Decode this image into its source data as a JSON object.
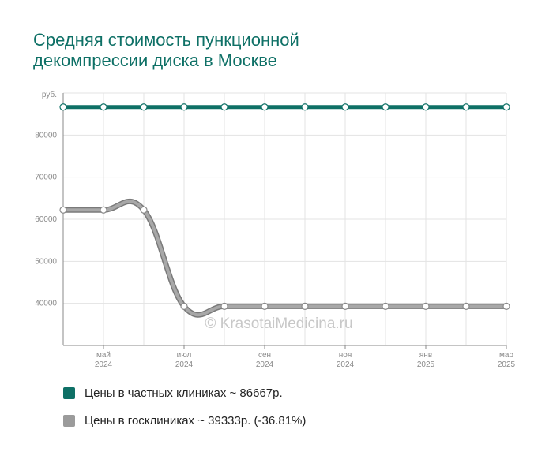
{
  "title": {
    "line1": "Средняя стоимость пункционной",
    "line2": "декомпрессии диска в Москве"
  },
  "watermark": "© KrasotaiMedicina.ru",
  "colors": {
    "private": "#0e7066",
    "public": "#9b9b9b",
    "title": "#0e7066",
    "grid": "#e3e3e3"
  },
  "legend": {
    "private_label": "Цены в частных клиниках ~ 86667р.",
    "public_label": "Цены в госклиниках ~ 39333р. (-36.81%)"
  },
  "chart_data": {
    "type": "line",
    "ylabel": "руб.",
    "ylim": [
      30000,
      90000
    ],
    "y_ticks": [
      40000,
      50000,
      60000,
      70000,
      80000
    ],
    "x_ticks": [
      {
        "pos": 1,
        "month": "май",
        "year": "2024"
      },
      {
        "pos": 3,
        "month": "июл",
        "year": "2024"
      },
      {
        "pos": 5,
        "month": "сен",
        "year": "2024"
      },
      {
        "pos": 7,
        "month": "ноя",
        "year": "2024"
      },
      {
        "pos": 9,
        "month": "янв",
        "year": "2025"
      },
      {
        "pos": 11,
        "month": "мар",
        "year": "2025"
      }
    ],
    "x": [
      0,
      1,
      2,
      3,
      4,
      5,
      6,
      7,
      8,
      9,
      10,
      11
    ],
    "series": [
      {
        "name": "Цены в частных клиниках",
        "values": [
          86667,
          86667,
          86667,
          86667,
          86667,
          86667,
          86667,
          86667,
          86667,
          86667,
          86667,
          86667
        ]
      },
      {
        "name": "Цены в госклиниках",
        "values": [
          62200,
          62200,
          62200,
          39300,
          39300,
          39300,
          39300,
          39300,
          39300,
          39300,
          39300,
          39300
        ]
      }
    ],
    "grid": true
  }
}
